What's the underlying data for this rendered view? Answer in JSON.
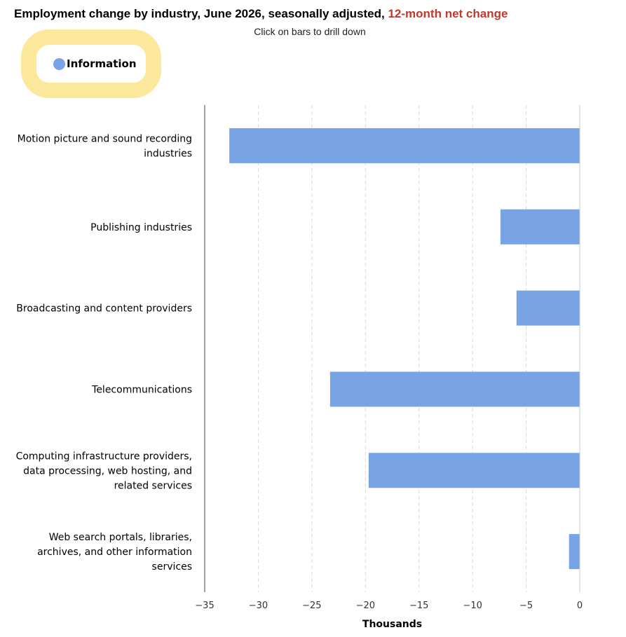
{
  "header": {
    "title_main": "Employment change by industry, June 2026, seasonally adjusted, ",
    "title_accent": "12-month net change",
    "subtitle": "Click on bars to drill down"
  },
  "legend": {
    "label": "Information",
    "color": "#78a3e4"
  },
  "colors": {
    "bar": "#78a3e4",
    "accent": "#c0392b",
    "highlight": "#fbe89a"
  },
  "chart_data": {
    "type": "bar",
    "orientation": "horizontal",
    "title": "Employment change by industry, June 2026, seasonally adjusted, 12-month net change",
    "xlabel": "Thousands",
    "xlim": [
      -35,
      0
    ],
    "xticks": [
      -35,
      -30,
      -25,
      -20,
      -15,
      -10,
      -5,
      0
    ],
    "xtick_labels": [
      "−35",
      "−30",
      "−25",
      "−20",
      "−15",
      "−10",
      "−5",
      "0"
    ],
    "grid": true,
    "legend_position": "top-left",
    "categories": [
      [
        "Motion picture and sound recording",
        "industries"
      ],
      [
        "Publishing industries"
      ],
      [
        "Broadcasting and content providers"
      ],
      [
        "Telecommunications"
      ],
      [
        "Computing infrastructure providers,",
        "data processing, web hosting, and",
        "related services"
      ],
      [
        "Web search portals, libraries,",
        "archives, and other information",
        "services"
      ]
    ],
    "series": [
      {
        "name": "Information",
        "values": [
          -32.7,
          -7.4,
          -5.9,
          -23.3,
          -19.7,
          -1.0
        ]
      }
    ]
  }
}
